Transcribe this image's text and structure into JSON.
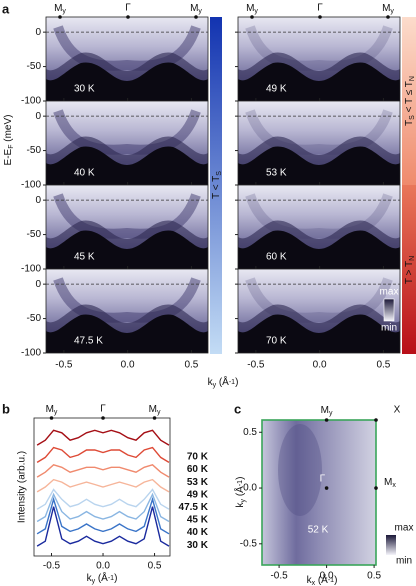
{
  "panel_a": {
    "letter": "a",
    "xlim": [
      -0.64,
      0.63
    ],
    "ylim": [
      -100,
      22
    ],
    "xticks": [
      -0.5,
      {
        "value": 0,
        "label": "0.0"
      },
      0.5
    ],
    "yticks": [
      0,
      -50,
      -100
    ],
    "ylabel": [
      "E-E",
      "F",
      " (meV)"
    ],
    "xlabel": [
      "k",
      "y",
      " (Å",
      "-1",
      ")"
    ],
    "symmetry": {
      "m": "M",
      "y": "y",
      "g": "Γ"
    },
    "temps_left": [
      "30 K",
      "40 K",
      "45 K",
      "47.5 K"
    ],
    "temps_right": [
      "49 K",
      "53 K",
      "60 K",
      "70 K"
    ],
    "phase_low": [
      "T < T",
      "S"
    ],
    "phase_mid": [
      "T",
      "S",
      " < T ≤ T",
      "N"
    ],
    "phase_high": [
      "T > T",
      "N"
    ],
    "scale": {
      "max": "max",
      "min": "min"
    }
  },
  "chart_data": {
    "type": "line",
    "letter": "b",
    "ylabel": "Intensity (arb.u.)",
    "xlabel": [
      "k",
      "y",
      " (Å",
      "-1",
      ")"
    ],
    "symmetry": {
      "m": "M",
      "y": "y",
      "g": "Γ"
    },
    "xlim": [
      -0.67,
      0.65
    ],
    "ylim": [
      0,
      5.6
    ],
    "xticks": [
      -0.5,
      {
        "value": 0,
        "label": "0.0"
      },
      0.5
    ],
    "x": [
      -0.64,
      -0.56,
      -0.48,
      -0.4,
      -0.32,
      -0.24,
      -0.16,
      -0.08,
      0,
      0.08,
      0.16,
      0.24,
      0.32,
      0.4,
      0.48,
      0.56,
      0.64
    ],
    "series": [
      {
        "name": "70 K",
        "color": "#a50f15",
        "values": [
          4.5,
          4.7,
          5.1,
          5.0,
          4.7,
          4.8,
          5.0,
          5.1,
          5.0,
          5.1,
          5.0,
          4.8,
          4.7,
          5.0,
          5.1,
          4.7,
          4.5
        ]
      },
      {
        "name": "60 K",
        "color": "#de4a36",
        "values": [
          3.8,
          4.0,
          4.4,
          4.3,
          4.0,
          4.1,
          4.3,
          4.3,
          4.2,
          4.3,
          4.3,
          4.1,
          4.0,
          4.3,
          4.4,
          4.0,
          3.8
        ]
      },
      {
        "name": "53 K",
        "color": "#f08a6e",
        "values": [
          3.2,
          3.4,
          3.7,
          3.6,
          3.4,
          3.5,
          3.6,
          3.6,
          3.5,
          3.6,
          3.6,
          3.5,
          3.4,
          3.6,
          3.7,
          3.4,
          3.2
        ]
      },
      {
        "name": "49 K",
        "color": "#f6b59a",
        "values": [
          2.6,
          2.8,
          3.1,
          3.0,
          2.8,
          2.9,
          3.0,
          2.9,
          2.8,
          2.9,
          3.0,
          2.9,
          2.8,
          3.0,
          3.1,
          2.8,
          2.6
        ]
      },
      {
        "name": "47.5 K",
        "color": "#b9d4ee",
        "values": [
          1.9,
          2.1,
          2.7,
          2.3,
          2.0,
          2.1,
          2.3,
          2.1,
          2.0,
          2.1,
          2.3,
          2.1,
          2.0,
          2.3,
          2.7,
          2.1,
          1.9
        ]
      },
      {
        "name": "45 K",
        "color": "#8ab6e2",
        "values": [
          1.4,
          1.6,
          2.5,
          1.8,
          1.5,
          1.6,
          1.8,
          1.6,
          1.5,
          1.6,
          1.8,
          1.6,
          1.5,
          1.8,
          2.5,
          1.6,
          1.4
        ]
      },
      {
        "name": "40 K",
        "color": "#3a74c8",
        "values": [
          0.9,
          1.1,
          2.3,
          1.2,
          1.0,
          1.1,
          1.3,
          1.1,
          1.0,
          1.1,
          1.3,
          1.1,
          1.0,
          1.2,
          2.3,
          1.1,
          0.9
        ]
      },
      {
        "name": "30 K",
        "color": "#1a2a9e",
        "values": [
          0.4,
          0.6,
          2.0,
          0.7,
          0.5,
          0.6,
          0.8,
          0.6,
          0.5,
          0.6,
          0.8,
          0.6,
          0.5,
          0.7,
          2.0,
          0.6,
          0.4
        ]
      }
    ]
  },
  "panel_c": {
    "letter": "c",
    "xlim": [
      -0.68,
      0.52
    ],
    "ylim": [
      -0.69,
      0.61
    ],
    "xticks": [
      -0.5,
      {
        "value": 0,
        "label": "0.0"
      },
      0.5
    ],
    "yticks": [
      0.5,
      {
        "value": 0,
        "label": "0.0"
      },
      -0.5
    ],
    "xlabel": [
      "k",
      "x",
      " (Å",
      "-1",
      ")"
    ],
    "ylabel": [
      "k",
      "y",
      " (Å",
      "-1",
      ")"
    ],
    "my": [
      "M",
      "y"
    ],
    "mx": [
      "M",
      "x"
    ],
    "x_point": "X",
    "gamma": "Γ",
    "temp": "52 K",
    "scale": {
      "max": "max",
      "min": "min"
    }
  }
}
